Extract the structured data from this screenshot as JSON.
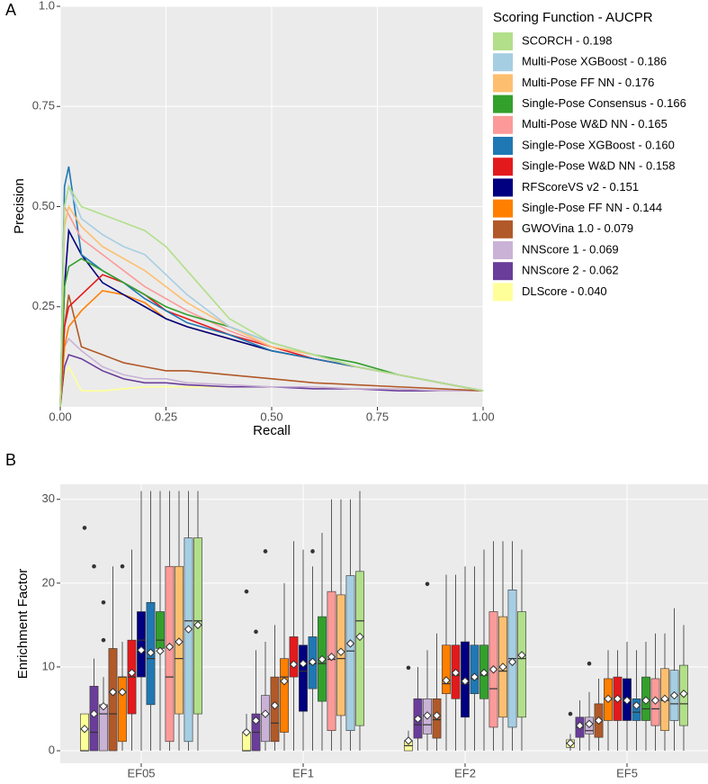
{
  "chart_data": [
    {
      "type": "line",
      "panel_label": "A",
      "x_label": "Recall",
      "y_label": "Precision",
      "legend_title": "Scoring Function - AUCPR",
      "xlim": [
        0,
        1
      ],
      "ylim": [
        0,
        1
      ],
      "xticks": [
        {
          "value": 0,
          "label": "0.00"
        },
        0.25,
        {
          "value": 0.5,
          "label": "0.50"
        },
        0.75,
        {
          "value": 1,
          "label": "1.00"
        }
      ],
      "yticks": [
        0.25,
        {
          "value": 0.5,
          "label": "0.50"
        },
        0.75,
        {
          "value": 1,
          "label": "1.0"
        }
      ],
      "x": [
        0,
        0.01,
        0.02,
        0.05,
        0.1,
        0.15,
        0.2,
        0.25,
        0.3,
        0.4,
        0.5,
        0.6,
        0.7,
        0.8,
        0.9,
        1.0
      ],
      "series": [
        {
          "name": "SCORCH - 0.198",
          "color": "#b2df8a",
          "values": [
            0,
            0.5,
            0.55,
            0.5,
            0.48,
            0.46,
            0.44,
            0.4,
            0.34,
            0.22,
            0.16,
            0.13,
            0.1,
            0.08,
            0.06,
            0.04
          ]
        },
        {
          "name": "Multi-Pose XGBoost - 0.186",
          "color": "#a6cee3",
          "values": [
            0,
            0.5,
            0.55,
            0.47,
            0.43,
            0.4,
            0.38,
            0.33,
            0.28,
            0.2,
            0.16,
            0.13,
            0.1,
            0.08,
            0.06,
            0.04
          ]
        },
        {
          "name": "Multi-Pose FF NN - 0.176",
          "color": "#fdbf6f",
          "values": [
            0,
            0.45,
            0.5,
            0.45,
            0.4,
            0.37,
            0.34,
            0.3,
            0.26,
            0.2,
            0.15,
            0.13,
            0.1,
            0.08,
            0.06,
            0.04
          ]
        },
        {
          "name": "Single-Pose Consensus - 0.166",
          "color": "#33a02c",
          "values": [
            0,
            0.3,
            0.35,
            0.37,
            0.34,
            0.31,
            0.28,
            0.25,
            0.23,
            0.2,
            0.16,
            0.13,
            0.11,
            0.08,
            0.06,
            0.04
          ]
        },
        {
          "name": "Multi-Pose W&D NN - 0.165",
          "color": "#fb9a99",
          "values": [
            0,
            0.5,
            0.48,
            0.42,
            0.38,
            0.34,
            0.3,
            0.27,
            0.24,
            0.19,
            0.15,
            0.13,
            0.1,
            0.08,
            0.06,
            0.04
          ]
        },
        {
          "name": "Single-Pose XGBoost - 0.160",
          "color": "#1f78b4",
          "values": [
            0,
            0.55,
            0.6,
            0.38,
            0.34,
            0.31,
            0.27,
            0.24,
            0.21,
            0.18,
            0.14,
            0.12,
            0.1,
            0.08,
            0.06,
            0.04
          ]
        },
        {
          "name": "Single-Pose W&D NN - 0.158",
          "color": "#e31a1c",
          "values": [
            0,
            0.2,
            0.25,
            0.28,
            0.33,
            0.31,
            0.28,
            0.24,
            0.22,
            0.18,
            0.15,
            0.12,
            0.1,
            0.08,
            0.06,
            0.04
          ]
        },
        {
          "name": "RFScoreVS v2 - 0.151",
          "color": "#000080",
          "values": [
            0,
            0.3,
            0.44,
            0.38,
            0.31,
            0.28,
            0.25,
            0.22,
            0.2,
            0.17,
            0.14,
            0.12,
            0.1,
            0.08,
            0.06,
            0.04
          ]
        },
        {
          "name": "Single-Pose FF NN - 0.144",
          "color": "#ff7f00",
          "values": [
            0,
            0.15,
            0.2,
            0.24,
            0.29,
            0.28,
            0.26,
            0.22,
            0.2,
            0.17,
            0.14,
            0.12,
            0.1,
            0.08,
            0.06,
            0.04
          ]
        },
        {
          "name": "GWOVina 1.0 - 0.079",
          "color": "#b15928",
          "values": [
            0,
            0.2,
            0.28,
            0.15,
            0.13,
            0.11,
            0.1,
            0.09,
            0.09,
            0.08,
            0.07,
            0.06,
            0.055,
            0.05,
            0.045,
            0.04
          ]
        },
        {
          "name": "NNScore 1 - 0.069",
          "color": "#cab2d6",
          "values": [
            0,
            0.15,
            0.17,
            0.14,
            0.1,
            0.08,
            0.07,
            0.07,
            0.06,
            0.055,
            0.05,
            0.05,
            0.045,
            0.045,
            0.04,
            0.04
          ]
        },
        {
          "name": "NNScore 2 - 0.062",
          "color": "#6a3d9a",
          "values": [
            0,
            0.1,
            0.13,
            0.12,
            0.09,
            0.07,
            0.06,
            0.06,
            0.055,
            0.05,
            0.05,
            0.045,
            0.045,
            0.04,
            0.04,
            0.04
          ]
        },
        {
          "name": "DLScore - 0.040",
          "color": "#ffff99",
          "values": [
            0,
            0.08,
            0.1,
            0.04,
            0.04,
            0.045,
            0.05,
            0.05,
            0.05,
            0.05,
            0.05,
            0.05,
            0.045,
            0.045,
            0.04,
            0.04
          ]
        }
      ]
    },
    {
      "type": "box",
      "panel_label": "B",
      "y_label": "Enrichment Factor",
      "categories": [
        "EF05",
        "EF1",
        "EF2",
        "EF5"
      ],
      "ylim": [
        -1.5,
        31.8
      ],
      "yticks": [
        0,
        10,
        20,
        30
      ],
      "series": [
        {
          "color": "#ffff99",
          "low": [
            0,
            0,
            0,
            0
          ],
          "q1": [
            0,
            0,
            0,
            0.4
          ],
          "median": [
            0,
            0,
            0.6,
            0.9
          ],
          "q3": [
            4.4,
            2.2,
            1.2,
            1.3
          ],
          "high": [
            4.4,
            4.4,
            2.4,
            2.0
          ],
          "mean": [
            2.6,
            2.2,
            1.2,
            0.9
          ],
          "outliers": [
            [
              26.6
            ],
            [
              19
            ],
            [
              9.9
            ],
            [
              4.4
            ]
          ]
        },
        {
          "color": "#6a3d9a",
          "low": [
            0,
            0,
            0,
            0
          ],
          "q1": [
            0,
            0,
            1.5,
            1.6
          ],
          "median": [
            2.2,
            2.2,
            3.1,
            2.8
          ],
          "q3": [
            7.7,
            4.4,
            6.2,
            4.0
          ],
          "high": [
            11,
            12,
            10,
            6
          ],
          "mean": [
            4.4,
            3.6,
            3.8,
            3.0
          ],
          "outliers": [
            [
              22
            ],
            [
              14.2
            ],
            [],
            []
          ]
        },
        {
          "color": "#cab2d6",
          "low": [
            0,
            0,
            0,
            0
          ],
          "q1": [
            0,
            1.1,
            2.0,
            2.0
          ],
          "median": [
            4.4,
            4.4,
            3.1,
            2.4
          ],
          "q3": [
            5.5,
            6.6,
            6.2,
            4.0
          ],
          "high": [
            8.8,
            13,
            12,
            7
          ],
          "mean": [
            5.3,
            4.4,
            4.2,
            3.2
          ],
          "outliers": [
            [
              17.7,
              13.2
            ],
            [
              23.8
            ],
            [
              19.9
            ],
            [
              10.4
            ]
          ]
        },
        {
          "color": "#b15928",
          "low": [
            0,
            0,
            0,
            0
          ],
          "q1": [
            0,
            1.1,
            1.5,
            1.6
          ],
          "median": [
            4.4,
            3.3,
            3.7,
            3.6
          ],
          "q3": [
            12.2,
            8.8,
            6.2,
            5.6
          ],
          "high": [
            22,
            15,
            14,
            8.6
          ],
          "mean": [
            7.0,
            5.4,
            4.2,
            3.6
          ],
          "outliers": [
            [],
            [],
            [],
            []
          ]
        },
        {
          "color": "#ff7f00",
          "low": [
            0,
            0,
            0,
            0
          ],
          "q1": [
            1.1,
            2.2,
            6.8,
            3.6
          ],
          "median": [
            8.8,
            8.8,
            8.0,
            6.2
          ],
          "q3": [
            8.8,
            11.0,
            12.6,
            8.6
          ],
          "high": [
            13,
            20,
            21,
            12
          ],
          "mean": [
            7.0,
            8.3,
            8.4,
            6.2
          ],
          "outliers": [
            [
              22
            ],
            [],
            [],
            []
          ]
        },
        {
          "color": "#e31a1c",
          "low": [
            0,
            0,
            0,
            0
          ],
          "q1": [
            4.4,
            8.8,
            6.2,
            3.6
          ],
          "median": [
            8.8,
            10.4,
            9.0,
            6.2
          ],
          "q3": [
            13.2,
            13.6,
            12.6,
            8.8
          ],
          "high": [
            24,
            25,
            21,
            12
          ],
          "mean": [
            9.3,
            10.3,
            9.3,
            6.2
          ],
          "outliers": [
            [],
            [],
            [],
            []
          ]
        },
        {
          "color": "#000080",
          "low": [
            0,
            0,
            0,
            0
          ],
          "q1": [
            8.8,
            4.7,
            4.0,
            3.6
          ],
          "median": [
            13.2,
            9.5,
            8.0,
            6.2
          ],
          "q3": [
            16.6,
            12.6,
            13.0,
            8.6
          ],
          "high": [
            31,
            24,
            22,
            13
          ],
          "mean": [
            12.0,
            10.4,
            8.3,
            6.0
          ],
          "outliers": [
            [],
            [],
            [],
            []
          ]
        },
        {
          "color": "#1f78b4",
          "low": [
            0,
            0,
            0,
            0
          ],
          "q1": [
            5.5,
            7.4,
            6.8,
            3.6
          ],
          "median": [
            11.0,
            10.4,
            8.6,
            4.6
          ],
          "q3": [
            17.7,
            13.6,
            12.6,
            6.2
          ],
          "high": [
            31,
            22,
            22,
            12
          ],
          "mean": [
            11.7,
            10.6,
            8.8,
            5.4
          ],
          "outliers": [
            [],
            [
              23.8
            ],
            [],
            []
          ]
        },
        {
          "color": "#33a02c",
          "low": [
            0,
            0,
            0,
            0
          ],
          "q1": [
            12.2,
            5.9,
            6.2,
            3.6
          ],
          "median": [
            13.2,
            10.4,
            9.0,
            5.0
          ],
          "q3": [
            16.6,
            16.0,
            12.6,
            8.8
          ],
          "high": [
            31,
            26,
            24,
            13
          ],
          "mean": [
            11.9,
            10.9,
            9.3,
            6.0
          ],
          "outliers": [
            [],
            [],
            [],
            []
          ]
        },
        {
          "color": "#fb9a99",
          "low": [
            0,
            0,
            0,
            0
          ],
          "q1": [
            1.1,
            2.4,
            2.8,
            3.0
          ],
          "median": [
            8.8,
            10.9,
            7.4,
            5.0
          ],
          "q3": [
            22,
            19,
            16.6,
            8.6
          ],
          "high": [
            31,
            30,
            25,
            14
          ],
          "mean": [
            12.4,
            11.2,
            9.7,
            6.0
          ],
          "outliers": [
            [],
            [],
            [],
            []
          ]
        },
        {
          "color": "#fdbf6f",
          "low": [
            0,
            0,
            0,
            0
          ],
          "q1": [
            4.4,
            4.2,
            4.0,
            2.4
          ],
          "median": [
            11.0,
            11.0,
            9.5,
            6.0
          ],
          "q3": [
            22,
            18.6,
            16.0,
            9.8
          ],
          "high": [
            31,
            30,
            25,
            14
          ],
          "mean": [
            13.0,
            11.8,
            10.0,
            6.2
          ],
          "outliers": [
            [],
            [],
            [],
            []
          ]
        },
        {
          "color": "#a6cee3",
          "low": [
            0,
            0,
            0,
            0
          ],
          "q1": [
            1.1,
            2.4,
            2.8,
            3.6
          ],
          "median": [
            15.5,
            11.9,
            11.0,
            5.6
          ],
          "q3": [
            25.4,
            20.9,
            19.2,
            9.6
          ],
          "high": [
            31,
            30,
            25,
            17
          ],
          "mean": [
            14.5,
            12.8,
            10.6,
            6.6
          ],
          "outliers": [
            [],
            [],
            [],
            []
          ]
        },
        {
          "color": "#b2df8a",
          "low": [
            0,
            0,
            0,
            0
          ],
          "q1": [
            4.4,
            3.0,
            4.0,
            3.0
          ],
          "median": [
            15.5,
            15.5,
            11.0,
            5.6
          ],
          "q3": [
            25.4,
            21.4,
            16.6,
            10.2
          ],
          "high": [
            31,
            31,
            24,
            15
          ],
          "mean": [
            15.0,
            13.6,
            11.4,
            6.8
          ],
          "outliers": [
            [],
            [],
            [],
            []
          ]
        }
      ]
    }
  ]
}
